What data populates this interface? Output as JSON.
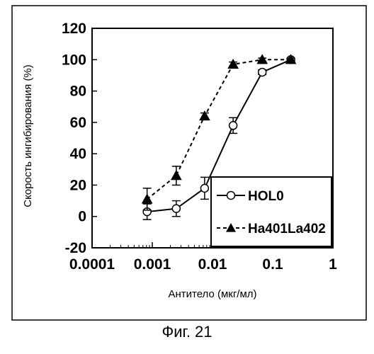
{
  "chart_data": {
    "type": "line",
    "xlabel": "Антитело (мкг/мл)",
    "ylabel": "Скорость ингибирования (%)",
    "xscale": "log",
    "xlim": [
      0.0001,
      1
    ],
    "ylim": [
      -20,
      120
    ],
    "x_ticks": [
      "0.0001",
      "0.001",
      "0.01",
      "0.1",
      "1"
    ],
    "x_tick_values": [
      0.0001,
      0.001,
      0.01,
      0.1,
      1
    ],
    "y_ticks": [
      "120",
      "100",
      "80",
      "60",
      "40",
      "20",
      "0",
      "-20"
    ],
    "y_tick_values": [
      120,
      100,
      80,
      60,
      40,
      20,
      0,
      -20
    ],
    "legend_position": "bottom-right",
    "grid": false,
    "series": [
      {
        "name": "HOL0",
        "marker": "open-circle",
        "line": "solid",
        "x": [
          0.00082,
          0.0025,
          0.0074,
          0.022,
          0.067,
          0.2
        ],
        "y": [
          3,
          5,
          18,
          58,
          92,
          100
        ],
        "err": [
          5,
          5,
          7,
          5,
          1.5,
          1
        ]
      },
      {
        "name": "Ha401La402",
        "marker": "filled-triangle",
        "line": "dashed",
        "x": [
          0.00082,
          0.0025,
          0.0074,
          0.022,
          0.067,
          0.2
        ],
        "y": [
          11,
          26,
          64,
          97,
          100,
          100
        ],
        "err": [
          7,
          6,
          2,
          1.5,
          1,
          1
        ]
      }
    ]
  },
  "caption": "Фиг. 21",
  "colors": {
    "ink": "#000000",
    "background": "#ffffff"
  }
}
